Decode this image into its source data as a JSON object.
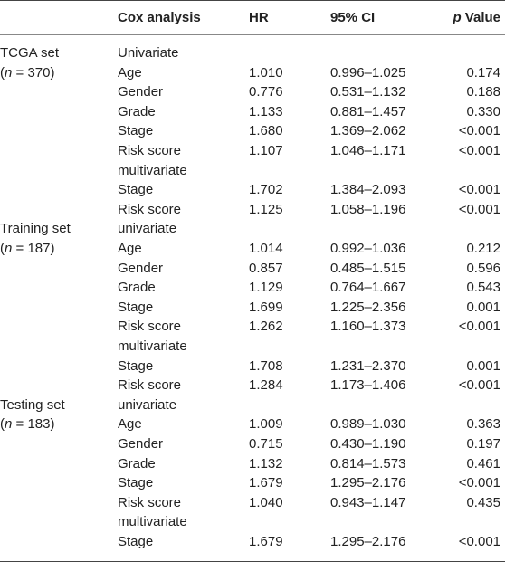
{
  "header": {
    "set": "",
    "cox": "Cox analysis",
    "hr": "HR",
    "ci": "95% CI",
    "p_italic": "p",
    "p_rest": " Value"
  },
  "rows": [
    {
      "set": "TCGA set",
      "set_n": "",
      "var": "Univariate",
      "hr": "",
      "ci": "",
      "p": ""
    },
    {
      "set": "(",
      "set_n": "n",
      "set_rest": " = 370)",
      "var": "Age",
      "hr": "1.010",
      "ci": "0.996–1.025",
      "p": "0.174"
    },
    {
      "set": "",
      "set_n": "",
      "var": "Gender",
      "hr": "0.776",
      "ci": "0.531–1.132",
      "p": "0.188"
    },
    {
      "set": "",
      "set_n": "",
      "var": "Grade",
      "hr": "1.133",
      "ci": "0.881–1.457",
      "p": "0.330"
    },
    {
      "set": "",
      "set_n": "",
      "var": "Stage",
      "hr": "1.680",
      "ci": "1.369–2.062",
      "p": "<0.001"
    },
    {
      "set": "",
      "set_n": "",
      "var": "Risk score",
      "hr": "1.107",
      "ci": "1.046–1.171",
      "p": "<0.001"
    },
    {
      "set": "",
      "set_n": "",
      "var": "multivariate",
      "hr": "",
      "ci": "",
      "p": ""
    },
    {
      "set": "",
      "set_n": "",
      "var": "Stage",
      "hr": "1.702",
      "ci": "1.384–2.093",
      "p": "<0.001"
    },
    {
      "set": "",
      "set_n": "",
      "var": "Risk score",
      "hr": "1.125",
      "ci": "1.058–1.196",
      "p": "<0.001"
    },
    {
      "set": "Training set",
      "set_n": "",
      "var": "univariate",
      "hr": "",
      "ci": "",
      "p": ""
    },
    {
      "set": "(",
      "set_n": "n",
      "set_rest": " = 187)",
      "var": "Age",
      "hr": "1.014",
      "ci": "0.992–1.036",
      "p": "0.212"
    },
    {
      "set": "",
      "set_n": "",
      "var": "Gender",
      "hr": "0.857",
      "ci": "0.485–1.515",
      "p": "0.596"
    },
    {
      "set": "",
      "set_n": "",
      "var": "Grade",
      "hr": "1.129",
      "ci": "0.764–1.667",
      "p": "0.543"
    },
    {
      "set": "",
      "set_n": "",
      "var": "Stage",
      "hr": "1.699",
      "ci": "1.225–2.356",
      "p": "0.001"
    },
    {
      "set": "",
      "set_n": "",
      "var": "Risk score",
      "hr": "1.262",
      "ci": "1.160–1.373",
      "p": "<0.001"
    },
    {
      "set": "",
      "set_n": "",
      "var": "multivariate",
      "hr": "",
      "ci": "",
      "p": ""
    },
    {
      "set": "",
      "set_n": "",
      "var": "Stage",
      "hr": "1.708",
      "ci": "1.231–2.370",
      "p": "0.001"
    },
    {
      "set": "",
      "set_n": "",
      "var": "Risk score",
      "hr": "1.284",
      "ci": "1.173–1.406",
      "p": "<0.001"
    },
    {
      "set": "Testing set",
      "set_n": "",
      "var": "univariate",
      "hr": "",
      "ci": "",
      "p": ""
    },
    {
      "set": "(",
      "set_n": "n",
      "set_rest": " = 183)",
      "var": "Age",
      "hr": "1.009",
      "ci": "0.989–1.030",
      "p": "0.363"
    },
    {
      "set": "",
      "set_n": "",
      "var": "Gender",
      "hr": "0.715",
      "ci": "0.430–1.190",
      "p": "0.197"
    },
    {
      "set": "",
      "set_n": "",
      "var": "Grade",
      "hr": "1.132",
      "ci": "0.814–1.573",
      "p": "0.461"
    },
    {
      "set": "",
      "set_n": "",
      "var": "Stage",
      "hr": "1.679",
      "ci": "1.295–2.176",
      "p": "<0.001"
    },
    {
      "set": "",
      "set_n": "",
      "var": "Risk score",
      "hr": "1.040",
      "ci": "0.943–1.147",
      "p": "0.435"
    },
    {
      "set": "",
      "set_n": "",
      "var": "multivariate",
      "hr": "",
      "ci": "",
      "p": ""
    },
    {
      "set": "",
      "set_n": "",
      "var": "Stage",
      "hr": "1.679",
      "ci": "1.295–2.176",
      "p": "<0.001"
    }
  ]
}
